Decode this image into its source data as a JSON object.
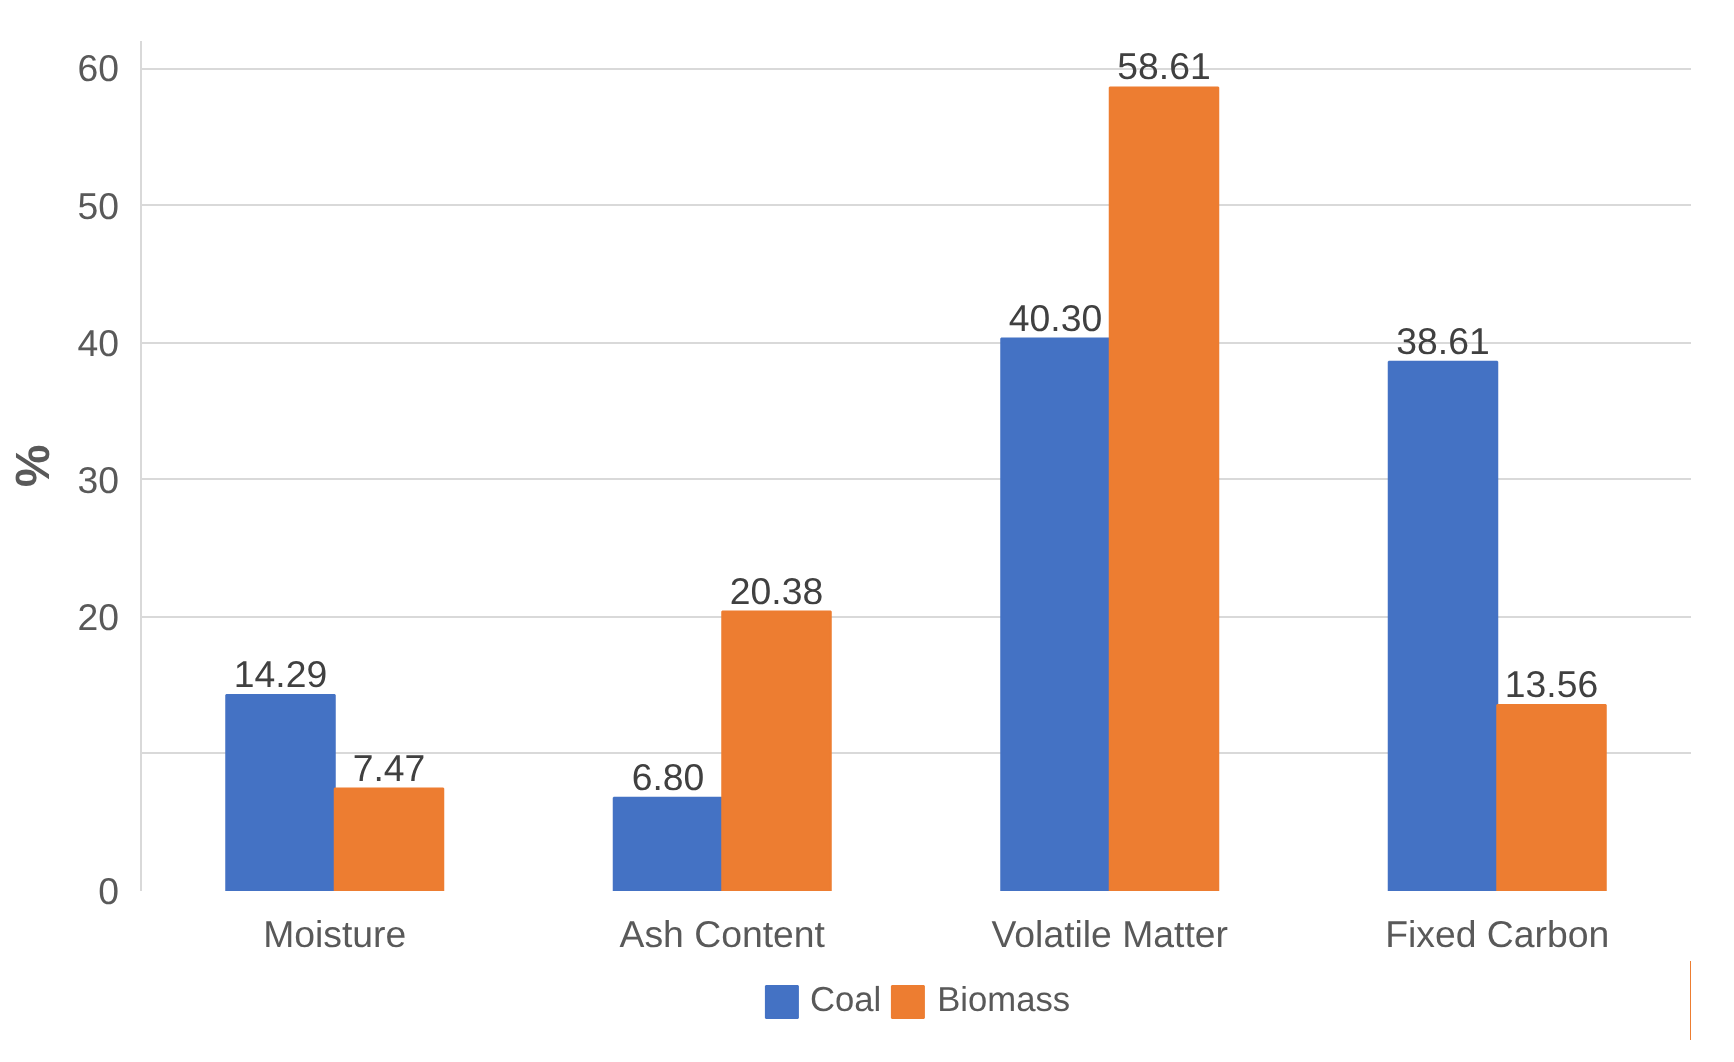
{
  "chart_data": {
    "type": "bar",
    "ylabel": "%",
    "categories": [
      "Moisture",
      "Ash Content",
      "Volatile Matter",
      "Fixed Carbon"
    ],
    "series": [
      {
        "name": "Coal",
        "color": "#4472c4",
        "values": [
          14.29,
          6.8,
          40.3,
          38.61
        ],
        "value_labels": [
          "14.29",
          "6.80",
          "40.30",
          "38.61"
        ]
      },
      {
        "name": "Biomass",
        "color": "#ed7d31",
        "values": [
          7.47,
          20.38,
          58.61,
          13.56
        ],
        "value_labels": [
          "7.47",
          "20.38",
          "58.61",
          "13.56"
        ]
      }
    ],
    "ylim": [
      0,
      62
    ],
    "yticks": [
      0,
      {
        "value": 10,
        "label": null
      },
      20,
      30,
      40,
      50,
      60
    ],
    "grid": "y",
    "legend": "bottom"
  }
}
